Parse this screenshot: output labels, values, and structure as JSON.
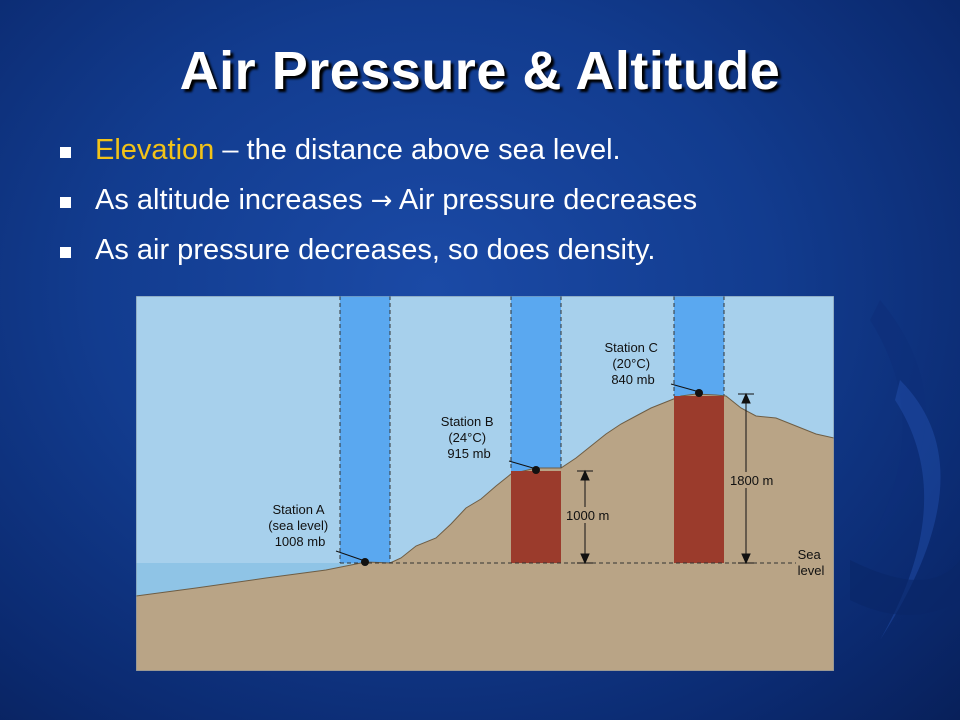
{
  "title": "Air Pressure & Altitude",
  "bullets": [
    {
      "highlight": "Elevation",
      "text": " – the distance above sea level."
    },
    {
      "before": "As altitude increases ",
      "arrow": "→",
      "after": " Air pressure decreases"
    },
    {
      "text": "As air pressure decreases, so does density."
    }
  ],
  "colors": {
    "highlight": "#f2c318",
    "sky": "#a7d0ec",
    "air_column": "#5aa8f0",
    "ground": "#b9a486",
    "rock_column": "#9b3b2c"
  },
  "figure": {
    "station_a": [
      "Station A",
      "(sea level)",
      "1008 mb"
    ],
    "station_b": [
      "Station B",
      "(24°C)",
      "915 mb"
    ],
    "station_c": [
      "Station C",
      "(20°C)",
      "840 mb"
    ],
    "height_b": "1000 m",
    "height_c": "1800 m",
    "sea_level": [
      "Sea",
      "level"
    ]
  }
}
